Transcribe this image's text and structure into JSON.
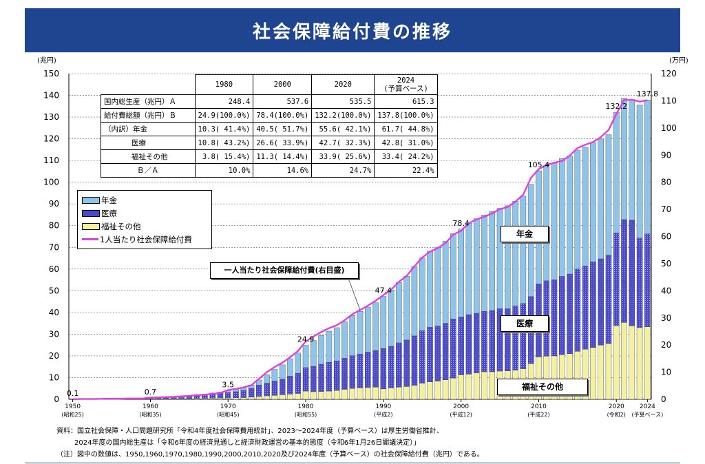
{
  "title": "社会保障給付費の推移",
  "chart_data": {
    "type": "bar",
    "y_left_label": "(兆円)",
    "y_right_label": "(万円)",
    "ylim_left": [
      0,
      150
    ],
    "ylim_right": [
      0,
      120
    ],
    "yticks_left": [
      0,
      10,
      20,
      30,
      40,
      50,
      60,
      70,
      80,
      90,
      100,
      110,
      120,
      130,
      140,
      150
    ],
    "yticks_right": [
      0,
      10,
      20,
      30,
      40,
      50,
      60,
      70,
      80,
      90,
      100,
      110,
      120
    ],
    "x_ticks": [
      {
        "year": 1950,
        "label": "1950",
        "sub": "(昭和25)"
      },
      {
        "year": 1960,
        "label": "1960",
        "sub": "(昭和35)"
      },
      {
        "year": 1970,
        "label": "1970",
        "sub": "(昭和45)"
      },
      {
        "year": 1980,
        "label": "1980",
        "sub": "(昭和55)"
      },
      {
        "year": 1990,
        "label": "1990",
        "sub": "(平成2)"
      },
      {
        "year": 2000,
        "label": "2000",
        "sub": "(平成12)"
      },
      {
        "year": 2010,
        "label": "2010",
        "sub": "(平成22)"
      },
      {
        "year": 2020,
        "label": "2020",
        "sub": "(令和2)"
      },
      {
        "year": 2024,
        "label": "2024",
        "sub": "(予算ベース)"
      }
    ],
    "stack_order": [
      "福祉その他",
      "医療",
      "年金"
    ],
    "series": [
      {
        "name": "年金",
        "type": "bar",
        "color": "#8ec3ea",
        "axis": "left"
      },
      {
        "name": "医療",
        "type": "bar",
        "color": "#4a4ac8",
        "axis": "left"
      },
      {
        "name": "福祉その他",
        "type": "bar",
        "color": "#f5f0a0",
        "axis": "left"
      },
      {
        "name": "1人当たり社会保障給付費",
        "type": "line",
        "color": "#e040e0",
        "axis": "right"
      }
    ],
    "years": [
      1950,
      1951,
      1952,
      1953,
      1954,
      1955,
      1956,
      1957,
      1958,
      1959,
      1960,
      1961,
      1962,
      1963,
      1964,
      1965,
      1966,
      1967,
      1968,
      1969,
      1970,
      1971,
      1972,
      1973,
      1974,
      1975,
      1976,
      1977,
      1978,
      1979,
      1980,
      1981,
      1982,
      1983,
      1984,
      1985,
      1986,
      1987,
      1988,
      1989,
      1990,
      1991,
      1992,
      1993,
      1994,
      1995,
      1996,
      1997,
      1998,
      1999,
      2000,
      2001,
      2002,
      2003,
      2004,
      2005,
      2006,
      2007,
      2008,
      2009,
      2010,
      2011,
      2012,
      2013,
      2014,
      2015,
      2016,
      2017,
      2018,
      2019,
      2020,
      2021,
      2022,
      2023,
      2024
    ],
    "pension": [
      0,
      0,
      0,
      0,
      0,
      0,
      0,
      0,
      0,
      0,
      0.1,
      0.1,
      0.1,
      0.2,
      0.2,
      0.3,
      0.4,
      0.4,
      0.5,
      0.6,
      0.9,
      1.0,
      1.2,
      1.6,
      2.4,
      3.9,
      5.4,
      6.6,
      8.0,
      9.3,
      10.3,
      11.9,
      13.2,
      14.3,
      15.3,
      16.9,
      18.5,
      19.7,
      20.8,
      22.1,
      24.0,
      25.9,
      27.8,
      29.4,
      32.1,
      33.5,
      35.0,
      36.4,
      37.8,
      39.3,
      40.5,
      42.1,
      43.6,
      44.4,
      45.5,
      46.3,
      47.5,
      48.2,
      49.5,
      51.7,
      52.2,
      53.1,
      53.7,
      54.4,
      54.4,
      54.8,
      54.7,
      54.9,
      55.2,
      55.5,
      55.6,
      55.9,
      55.6,
      61.3,
      61.7
    ],
    "medical": [
      0,
      0.1,
      0.1,
      0.1,
      0.2,
      0.3,
      0.3,
      0.3,
      0.3,
      0.3,
      0.4,
      0.5,
      0.6,
      0.8,
      1.0,
      1.2,
      1.4,
      1.6,
      1.9,
      2.2,
      2.5,
      2.8,
      3.3,
      4.0,
      5.2,
      5.8,
      6.6,
      7.2,
      8.3,
      9.3,
      10.8,
      11.7,
      12.6,
      13.3,
      13.6,
      14.3,
      15.1,
      15.6,
      16.3,
      16.8,
      18.6,
      19.2,
      20.4,
      21.4,
      22.8,
      24.2,
      25.2,
      25.3,
      26.0,
      27.2,
      26.6,
      27.4,
      27.4,
      27.8,
      28.3,
      28.7,
      28.6,
      29.6,
      30.0,
      30.9,
      33.6,
      34.7,
      35.1,
      36.1,
      36.7,
      37.9,
      38.3,
      39.4,
      39.7,
      40.7,
      42.7,
      47.4,
      48.7,
      41.3,
      42.8
    ],
    "welfare": [
      0,
      0,
      0,
      0,
      0,
      0,
      0,
      0,
      0,
      0,
      0.2,
      0.2,
      0.2,
      0.3,
      0.3,
      0.3,
      0.4,
      0.4,
      0.5,
      0.6,
      0.6,
      0.7,
      0.8,
      1.0,
      1.3,
      1.6,
      1.8,
      2.1,
      2.4,
      2.7,
      3.8,
      3.5,
      3.6,
      3.8,
      4.1,
      4.6,
      5.0,
      5.2,
      5.4,
      5.6,
      4.8,
      5.2,
      5.6,
      5.9,
      6.4,
      7.4,
      8.0,
      8.4,
      9.0,
      9.8,
      11.3,
      11.6,
      12.2,
      12.7,
      12.7,
      13.0,
      13.1,
      13.4,
      14.1,
      16.4,
      19.5,
      19.9,
      20.0,
      20.5,
      21.0,
      22.1,
      23.1,
      23.9,
      25.0,
      25.7,
      33.9,
      35.4,
      33.8,
      33.0,
      33.4
    ],
    "per_capita": [
      0.0,
      0.1,
      0.1,
      0.1,
      0.2,
      0.2,
      0.2,
      0.3,
      0.3,
      0.3,
      0.6,
      0.7,
      0.8,
      0.9,
      1.1,
      1.3,
      1.5,
      1.7,
      2.0,
      2.3,
      3.4,
      3.8,
      4.4,
      5.2,
      7.6,
      10.0,
      11.9,
      13.5,
      15.5,
      17.8,
      21.3,
      23.1,
      24.8,
      26.2,
      27.3,
      29.1,
      31.3,
      32.9,
      34.5,
      36.3,
      38.4,
      40.4,
      43.3,
      45.5,
      49.0,
      52.2,
      54.4,
      55.7,
      57.6,
      60.7,
      62.1,
      64.9,
      66.3,
      67.3,
      68.5,
      70.1,
      70.8,
      72.8,
      75.4,
      81.6,
      84.8,
      86.3,
      87.2,
      87.8,
      89.8,
      92.6,
      93.8,
      94.8,
      96.6,
      99.3,
      105.1,
      110.3,
      110.4,
      109.7,
      110.2
    ],
    "bar_labels": [
      {
        "year": 1950,
        "text": "0.1"
      },
      {
        "year": 1960,
        "text": "0.7"
      },
      {
        "year": 1970,
        "text": "3.5"
      },
      {
        "year": 1980,
        "text": "24.9"
      },
      {
        "year": 1990,
        "text": "47.4"
      },
      {
        "year": 2000,
        "text": "78.4"
      },
      {
        "year": 2010,
        "text": "105.4"
      },
      {
        "year": 2020,
        "text": "132.2"
      },
      {
        "year": 2024,
        "text": "137.8"
      }
    ]
  },
  "table": {
    "headers": [
      "",
      "1980",
      "2000",
      "2020",
      "2024",
      "(予算ベース)"
    ],
    "rows": [
      {
        "label": "国内総生産（兆円）Ａ",
        "values": [
          "248.4",
          "537.6",
          "535.5",
          "615.3"
        ]
      },
      {
        "label": "給付費総額（兆円）Ｂ",
        "values": [
          "24.9(100.0%)",
          "78.4(100.0%)",
          "132.2(100.0%)",
          "137.8(100.0%)"
        ]
      },
      {
        "label": "（内訳）年金",
        "values": [
          "10.3( 41.4%)",
          "40.5( 51.7%)",
          "55.6( 42.1%)",
          "61.7( 44.8%)"
        ]
      },
      {
        "label": "医療",
        "values": [
          "10.8( 43.2%)",
          "26.6( 33.9%)",
          "42.7( 32.3%)",
          "42.8( 31.0%)"
        ]
      },
      {
        "label": "福祉その他",
        "values": [
          "3.8( 15.4%)",
          "11.3( 14.4%)",
          "33.9( 25.6%)",
          "33.4( 24.2%)"
        ]
      },
      {
        "label": "Ｂ／Ａ",
        "values": [
          "10.0%",
          "14.6%",
          "24.7%",
          "22.4%"
        ]
      }
    ]
  },
  "legend": {
    "pension": "年金",
    "medical": "医療",
    "welfare": "福祉その他",
    "per_capita": "1人当たり社会保障給付費"
  },
  "annotations": {
    "pension_box": "年金",
    "medical_box": "医療",
    "welfare_box": "福祉その他",
    "per_capita_box": "一人当たり社会保障給付費(右目盛)"
  },
  "notes": [
    "資料：国立社会保障・人口問題研究所「令和4年度社会保障費用統計」、2023～2024年度（予算ベース）は厚生労働省推計、",
    "2024年度の国内総生産は「令和6年度の経済見通しと経済財政運営の基本的態度（令和6年1月26日閣議決定）」",
    "（注）図中の数値は、1950,1960,1970,1980,1990,2000,2010,2020及び2024年度（予算ベース）の社会保障給付費（兆円）である。"
  ]
}
